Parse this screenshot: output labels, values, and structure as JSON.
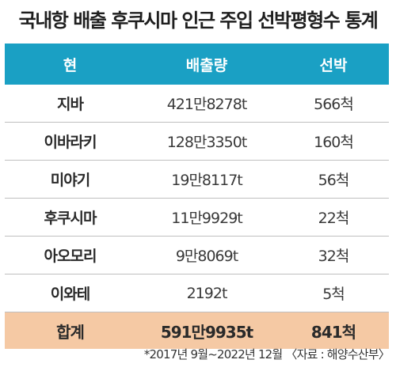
{
  "title": "국내항 배출 후쿠시마 인근 주입 선박평형수 통계",
  "table": {
    "headers": [
      "현",
      "배출량",
      "선박"
    ],
    "rows": [
      [
        "지바",
        "421만8278t",
        "566척"
      ],
      [
        "이바라키",
        "128만3350t",
        "160척"
      ],
      [
        "미야기",
        "19만8117t",
        "56척"
      ],
      [
        "후쿠시마",
        "11만9929t",
        "22척"
      ],
      [
        "아오모리",
        "9만8069t",
        "32척"
      ],
      [
        "이와테",
        "2192t",
        "5척"
      ]
    ],
    "total": [
      "합계",
      "591만9935t",
      "841척"
    ]
  },
  "note": "*2017년 9월~2022년 12월 〈자료 : 해양수산부〉",
  "colors": {
    "header_bg": "#1aa0c4",
    "total_bg": "#f5c9a4",
    "row_divider": "#bfbfbf"
  }
}
